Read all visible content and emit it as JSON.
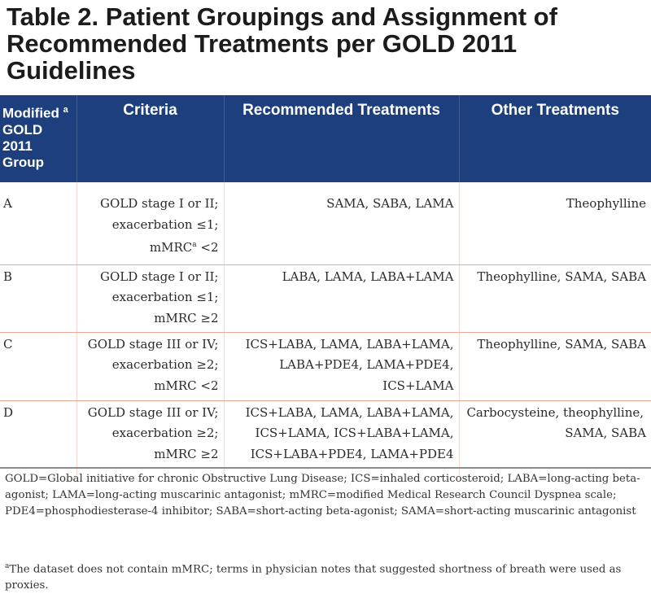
{
  "title": {
    "line1": "Table 2. Patient Groupings and Assignment of",
    "line2": "Recommended Treatments per GOLD 2011",
    "line3": "Guidelines"
  },
  "headers": {
    "group_lines": [
      "Modified",
      "GOLD",
      "2011",
      "Group"
    ],
    "group_sup": "a",
    "criteria": "Criteria",
    "recommended": "Recommended Treatments",
    "other": "Other Treatments"
  },
  "rows": [
    {
      "group": "A",
      "criteria": [
        "GOLD stage I or II;",
        "exacerbation ≤1;",
        "mMRC",
        "<2"
      ],
      "criteria_sup": "a",
      "recommended": [
        "SAMA, SABA, LAMA"
      ],
      "other": [
        "Theophylline"
      ]
    },
    {
      "group": "B",
      "criteria": [
        "GOLD stage I or II;",
        "exacerbation ≤1;",
        "mMRC ≥2"
      ],
      "recommended": [
        "LABA, LAMA, LABA+LAMA"
      ],
      "other": [
        "Theophylline, SAMA, SABA"
      ]
    },
    {
      "group": "C",
      "criteria": [
        "GOLD stage III or IV;",
        "exacerbation ≥2;",
        "mMRC <2"
      ],
      "recommended": [
        "ICS+LABA, LAMA, LABA+LAMA,",
        "LABA+PDE4, LAMA+PDE4,",
        "ICS+LAMA"
      ],
      "other": [
        "Theophylline, SAMA, SABA"
      ]
    },
    {
      "group": "D",
      "criteria": [
        "GOLD stage III or IV;",
        "exacerbation ≥2;",
        "mMRC ≥2"
      ],
      "recommended": [
        "ICS+LABA, LAMA, LABA+LAMA,",
        "ICS+LAMA, ICS+LABA+LAMA,",
        "ICS+LABA+PDE4, LAMA+PDE4"
      ],
      "other": [
        "Carbocysteine, theophylline,",
        "SAMA, SABA"
      ]
    }
  ],
  "footnotes": {
    "abbreviations": "GOLD=Global initiative for chronic Obstructive Lung Disease; ICS=inhaled corticosteroid; LABA=long-acting beta-agonist; LAMA=long-acting muscarinic antagonist; mMRC=modified Medical Research Council Dyspnea scale; PDE4=phosphodiesterase-4 inhibitor; SABA=short-acting beta-agonist; SAMA=short-acting muscarinic antagonist",
    "note_sup": "a",
    "note": "The dataset does not contain mMRC; terms in physician notes that suggested shortness of breath were used as proxies."
  },
  "colors": {
    "header_bg": "#1e3f7d",
    "row_rule": "#e8a893"
  }
}
